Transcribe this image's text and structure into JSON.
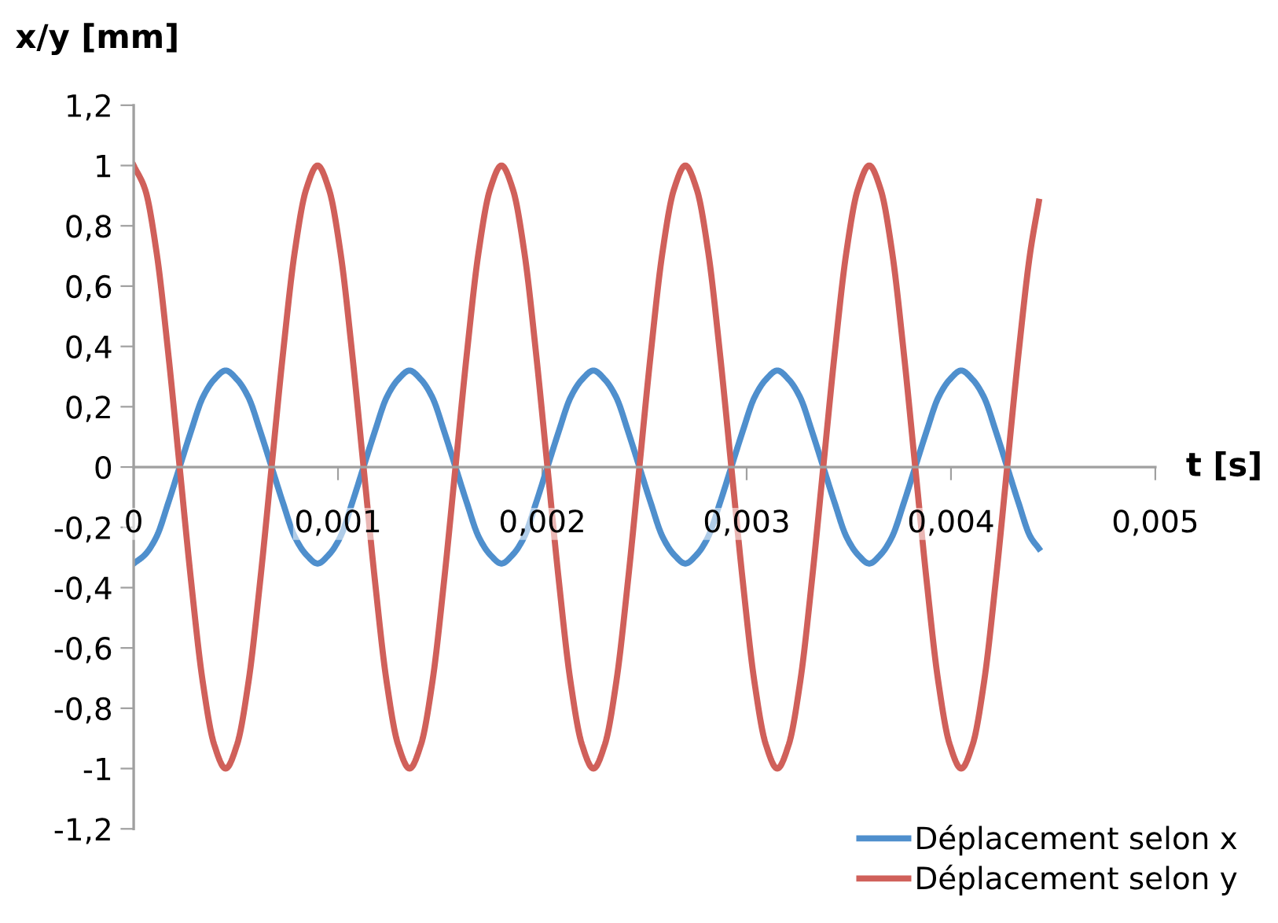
{
  "chart_data": {
    "type": "line",
    "xlabel": "t [s]",
    "ylabel": "x/y [mm]",
    "x": [
      0,
      5.625e-05,
      0.0001125,
      0.00016875,
      0.000225,
      0.00028125,
      0.0003375,
      0.00039375,
      0.00045,
      0.00050625,
      0.0005625,
      0.00061875,
      0.000675,
      0.00073125,
      0.0007875,
      0.00084375,
      0.0009,
      0.00095625,
      0.0010125,
      0.00106875,
      0.001125,
      0.00118125,
      0.0012375,
      0.00129375,
      0.00135,
      0.00140625,
      0.0014625,
      0.00151875,
      0.001575,
      0.00163125,
      0.0016875,
      0.00174375,
      0.0018,
      0.00185625,
      0.0019125,
      0.00196875,
      0.002025,
      0.00208125,
      0.0021375,
      0.00219375,
      0.00225,
      0.00230625,
      0.0023625,
      0.00241875,
      0.002475,
      0.00253125,
      0.0025875,
      0.00264375,
      0.0027,
      0.00275625,
      0.0028125,
      0.00286875,
      0.002925,
      0.00298125,
      0.0030375,
      0.00309375,
      0.00315,
      0.00320625,
      0.0032625,
      0.00331875,
      0.003375,
      0.00343125,
      0.0034875,
      0.00354375,
      0.0036,
      0.00365625,
      0.0037125,
      0.00376875,
      0.003825,
      0.00388125,
      0.0039375,
      0.00399375,
      0.00405,
      0.00410625,
      0.0041625,
      0.00421875,
      0.004275,
      0.00433125,
      0.0043875,
      0.00443
    ],
    "series": [
      {
        "name": "Déplacement selon x",
        "color": "#4f8fcd",
        "values": [
          -0.32,
          -0.29,
          -0.23,
          -0.12,
          0,
          0.12,
          0.23,
          0.29,
          0.32,
          0.29,
          0.23,
          0.12,
          0,
          -0.12,
          -0.23,
          -0.29,
          -0.32,
          -0.29,
          -0.23,
          -0.12,
          0,
          0.12,
          0.23,
          0.29,
          0.32,
          0.29,
          0.23,
          0.12,
          0,
          -0.12,
          -0.23,
          -0.29,
          -0.32,
          -0.29,
          -0.23,
          -0.12,
          0,
          0.12,
          0.23,
          0.29,
          0.32,
          0.29,
          0.23,
          0.12,
          0,
          -0.12,
          -0.23,
          -0.29,
          -0.32,
          -0.29,
          -0.23,
          -0.12,
          0,
          0.12,
          0.23,
          0.29,
          0.32,
          0.29,
          0.23,
          0.12,
          0,
          -0.12,
          -0.23,
          -0.29,
          -0.32,
          -0.29,
          -0.23,
          -0.12,
          0,
          0.12,
          0.23,
          0.29,
          0.32,
          0.29,
          0.23,
          0.12,
          0,
          -0.12,
          -0.23,
          -0.27
        ]
      },
      {
        "name": "Déplacement selon y",
        "color": "#d0605a",
        "values": [
          1,
          0.92,
          0.71,
          0.38,
          0,
          -0.38,
          -0.71,
          -0.92,
          -1,
          -0.92,
          -0.71,
          -0.38,
          0,
          0.38,
          0.71,
          0.92,
          1,
          0.92,
          0.71,
          0.38,
          0,
          -0.38,
          -0.71,
          -0.92,
          -1,
          -0.92,
          -0.71,
          -0.38,
          0,
          0.38,
          0.71,
          0.92,
          1,
          0.92,
          0.71,
          0.38,
          0,
          -0.38,
          -0.71,
          -0.92,
          -1,
          -0.92,
          -0.71,
          -0.38,
          0,
          0.38,
          0.71,
          0.92,
          1,
          0.92,
          0.71,
          0.38,
          0,
          -0.38,
          -0.71,
          -0.92,
          -1,
          -0.92,
          -0.71,
          -0.38,
          0,
          0.38,
          0.71,
          0.92,
          1,
          0.92,
          0.71,
          0.38,
          0,
          -0.38,
          -0.71,
          -0.92,
          -1,
          -0.92,
          -0.71,
          -0.38,
          0,
          0.38,
          0.71,
          0.88
        ]
      }
    ],
    "xlim": [
      0,
      0.005
    ],
    "xticks": [
      {
        "value": 0,
        "label": "0"
      },
      {
        "value": 0.001,
        "label": "0,001"
      },
      {
        "value": 0.002,
        "label": "0,002"
      },
      {
        "value": 0.003,
        "label": "0,003"
      },
      {
        "value": 0.004,
        "label": "0,004"
      },
      {
        "value": 0.005,
        "label": "0,005"
      }
    ],
    "ylim": [
      -1.2,
      1.2
    ],
    "yticks": [
      {
        "value": -1.2,
        "label": "-1,2"
      },
      {
        "value": -1,
        "label": "-1"
      },
      {
        "value": -0.8,
        "label": "-0,8"
      },
      {
        "value": -0.6,
        "label": "-0,6"
      },
      {
        "value": -0.4,
        "label": "-0,4"
      },
      {
        "value": -0.2,
        "label": "-0,2"
      },
      {
        "value": 0,
        "label": "0"
      },
      {
        "value": 0.2,
        "label": "0,2"
      },
      {
        "value": 0.4,
        "label": "0,4"
      },
      {
        "value": 0.6,
        "label": "0,6"
      },
      {
        "value": 0.8,
        "label": "0,8"
      },
      {
        "value": 1,
        "label": "1"
      },
      {
        "value": 1.2,
        "label": "1,2"
      }
    ],
    "grid": false,
    "legend": "bottom right",
    "marker": "none",
    "line_style": "solid"
  }
}
